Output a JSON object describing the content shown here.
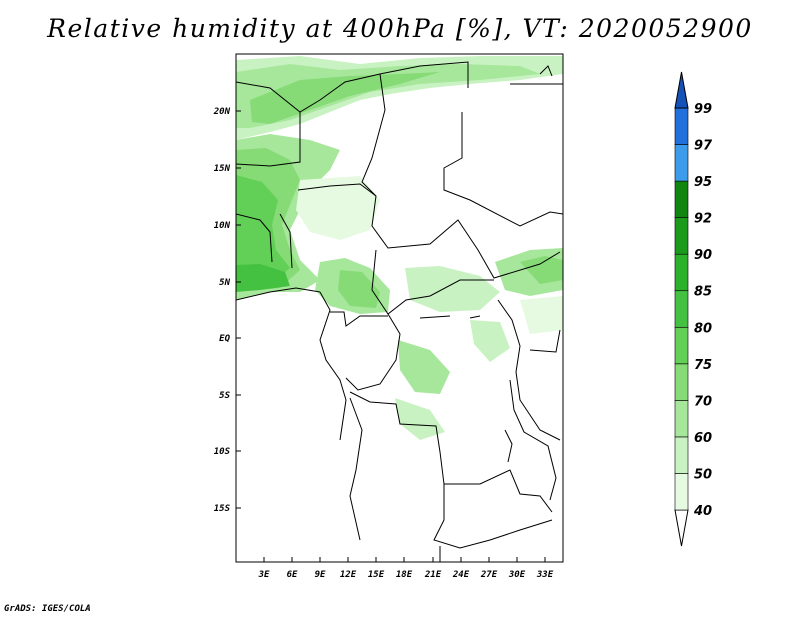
{
  "title": "Relative humidity at 400hPa [%], VT: 2020052900",
  "credit": "GrADS: IGES/COLA",
  "map": {
    "lon_labels": [
      "3E",
      "6E",
      "9E",
      "12E",
      "15E",
      "18E",
      "21E",
      "24E",
      "27E",
      "30E",
      "33E"
    ],
    "lat_labels": [
      "20N",
      "15N",
      "10N",
      "5N",
      "EQ",
      "5S",
      "10S",
      "15S"
    ]
  },
  "colorbar": {
    "levels": [
      "40",
      "50",
      "60",
      "70",
      "75",
      "80",
      "85",
      "90",
      "92",
      "95",
      "97",
      "99"
    ],
    "colors": [
      "#ffffff",
      "#e5fae1",
      "#c9f2c2",
      "#a7e79c",
      "#86db77",
      "#62cf57",
      "#45c141",
      "#2cb12a",
      "#1b9a1b",
      "#108610",
      "#3c9bea",
      "#2170db",
      "#1552b8"
    ]
  }
}
